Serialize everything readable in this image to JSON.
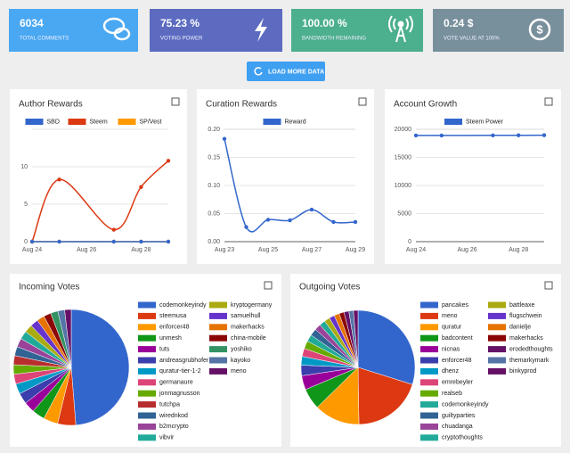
{
  "cards": [
    {
      "value": "6034",
      "label": "TOTAL COMMENTS"
    },
    {
      "value": "75.23 %",
      "label": "VOTING POWER"
    },
    {
      "value": "100.00 %",
      "label": "BANDWIDTH REMAINING"
    },
    {
      "value": "0.24 $",
      "label": "VOTE VALUE AT 100%"
    }
  ],
  "button": "LOAD MORE DATA",
  "chart_data": [
    {
      "type": "line",
      "title": "Author Rewards",
      "x": [
        24,
        25,
        27,
        28,
        29
      ],
      "xlim": [
        24,
        29
      ],
      "xticks": [
        {
          "value": 24,
          "label": "Aug 24"
        },
        {
          "value": 26,
          "label": "Aug 26"
        },
        {
          "value": 28,
          "label": "Aug 28"
        }
      ],
      "ylim": [
        0,
        15
      ],
      "yticks": [
        0,
        5,
        10
      ],
      "grid": true,
      "series": [
        {
          "name": "SBD",
          "color": "#3366cc",
          "values": [
            0,
            0,
            0,
            0,
            0
          ]
        },
        {
          "name": "Steem",
          "color": "#dc3912",
          "values": [
            0,
            8.3,
            1.6,
            7.3,
            10.8
          ]
        },
        {
          "name": "SP/Vest",
          "color": "#ff9900",
          "values": [
            0,
            0,
            0,
            0,
            0
          ]
        }
      ]
    },
    {
      "type": "line",
      "title": "Curation Rewards",
      "x": [
        23,
        24,
        25,
        26,
        27,
        28,
        29
      ],
      "xlim": [
        23,
        29
      ],
      "xticks": [
        {
          "value": 23,
          "label": "Aug 23"
        },
        {
          "value": 25,
          "label": "Aug 25"
        },
        {
          "value": 27,
          "label": "Aug 27"
        },
        {
          "value": 29,
          "label": "Aug 29"
        }
      ],
      "ylim": [
        0,
        0.2
      ],
      "yticks": [
        {
          "value": 0,
          "label": "0.00"
        },
        {
          "value": 0.05,
          "label": "0.05"
        },
        {
          "value": 0.1,
          "label": "0.10"
        },
        {
          "value": 0.15,
          "label": "0.15"
        },
        {
          "value": 0.2,
          "label": "0.20"
        }
      ],
      "grid": true,
      "series": [
        {
          "name": "Reward",
          "color": "#3366cc",
          "values": [
            0.183,
            0.026,
            0.039,
            0.038,
            0.057,
            0.035,
            0.035
          ]
        }
      ]
    },
    {
      "type": "line",
      "title": "Account Growth",
      "x": [
        24,
        25,
        27,
        28,
        29
      ],
      "xlim": [
        24,
        29
      ],
      "xticks": [
        {
          "value": 24,
          "label": "Aug 24"
        },
        {
          "value": 26,
          "label": "Aug 26"
        },
        {
          "value": 28,
          "label": "Aug 28"
        }
      ],
      "ylim": [
        0,
        20000
      ],
      "yticks": [
        0,
        5000,
        10000,
        15000,
        20000
      ],
      "grid": true,
      "series": [
        {
          "name": "Steem Power",
          "color": "#3366cc",
          "values": [
            18900,
            18900,
            18920,
            18930,
            18950
          ]
        }
      ]
    },
    {
      "type": "pie",
      "title": "Incoming Votes",
      "categories": [
        "codemonkeyindy",
        "steemusa",
        "enforcer48",
        "unmesh",
        "tuts",
        "andreasgrubhofer",
        "quratur-tier-1-2",
        "germanaure",
        "jonmagnusson",
        "tutchpa",
        "wirednkod",
        "b2mcrypto",
        "vibvir",
        "kryptogermany",
        "samuelhull",
        "makerhacks",
        "china-mobile",
        "yoshiko",
        "kayoko",
        "meno"
      ],
      "values": [
        48,
        5,
        4,
        3.5,
        3,
        3,
        2.8,
        2.7,
        2.6,
        2.5,
        2.5,
        2.4,
        2.3,
        2.2,
        2.2,
        2.1,
        2,
        2,
        1.9,
        1.8
      ],
      "colors": [
        "#3366cc",
        "#dc3912",
        "#ff9900",
        "#109618",
        "#990099",
        "#3b3eac",
        "#0099c6",
        "#dd4477",
        "#66aa00",
        "#b82e2e",
        "#316395",
        "#994499",
        "#22aa99",
        "#aaaa11",
        "#6633cc",
        "#e67300",
        "#8b0707",
        "#329262",
        "#5574a6",
        "#651067"
      ]
    },
    {
      "type": "pie",
      "title": "Outgoing Votes",
      "categories": [
        "pancakes",
        "meno",
        "quratur",
        "badcontent",
        "nicnas",
        "enforcer48",
        "dhenz",
        "emrebeyler",
        "realseb",
        "codemonkeyindy",
        "guiltyparties",
        "chuadanga",
        "cryptothoughts",
        "battleaxe",
        "flugschwein",
        "danielje",
        "makerhacks",
        "erodedthoughts",
        "themarkymark",
        "binkyprod"
      ],
      "values": [
        30,
        20,
        13,
        6,
        4,
        3,
        2.5,
        2.3,
        2.2,
        2,
        2,
        1.8,
        1.7,
        1.6,
        1.5,
        1.5,
        1.4,
        1.4,
        1.3,
        1.3
      ],
      "colors": [
        "#3366cc",
        "#dc3912",
        "#ff9900",
        "#109618",
        "#990099",
        "#3b3eac",
        "#0099c6",
        "#dd4477",
        "#66aa00",
        "#22aa99",
        "#316395",
        "#994499",
        "#22aa99",
        "#aaaa11",
        "#6633cc",
        "#e67300",
        "#8b0707",
        "#651067",
        "#5574a6",
        "#651067"
      ]
    }
  ]
}
